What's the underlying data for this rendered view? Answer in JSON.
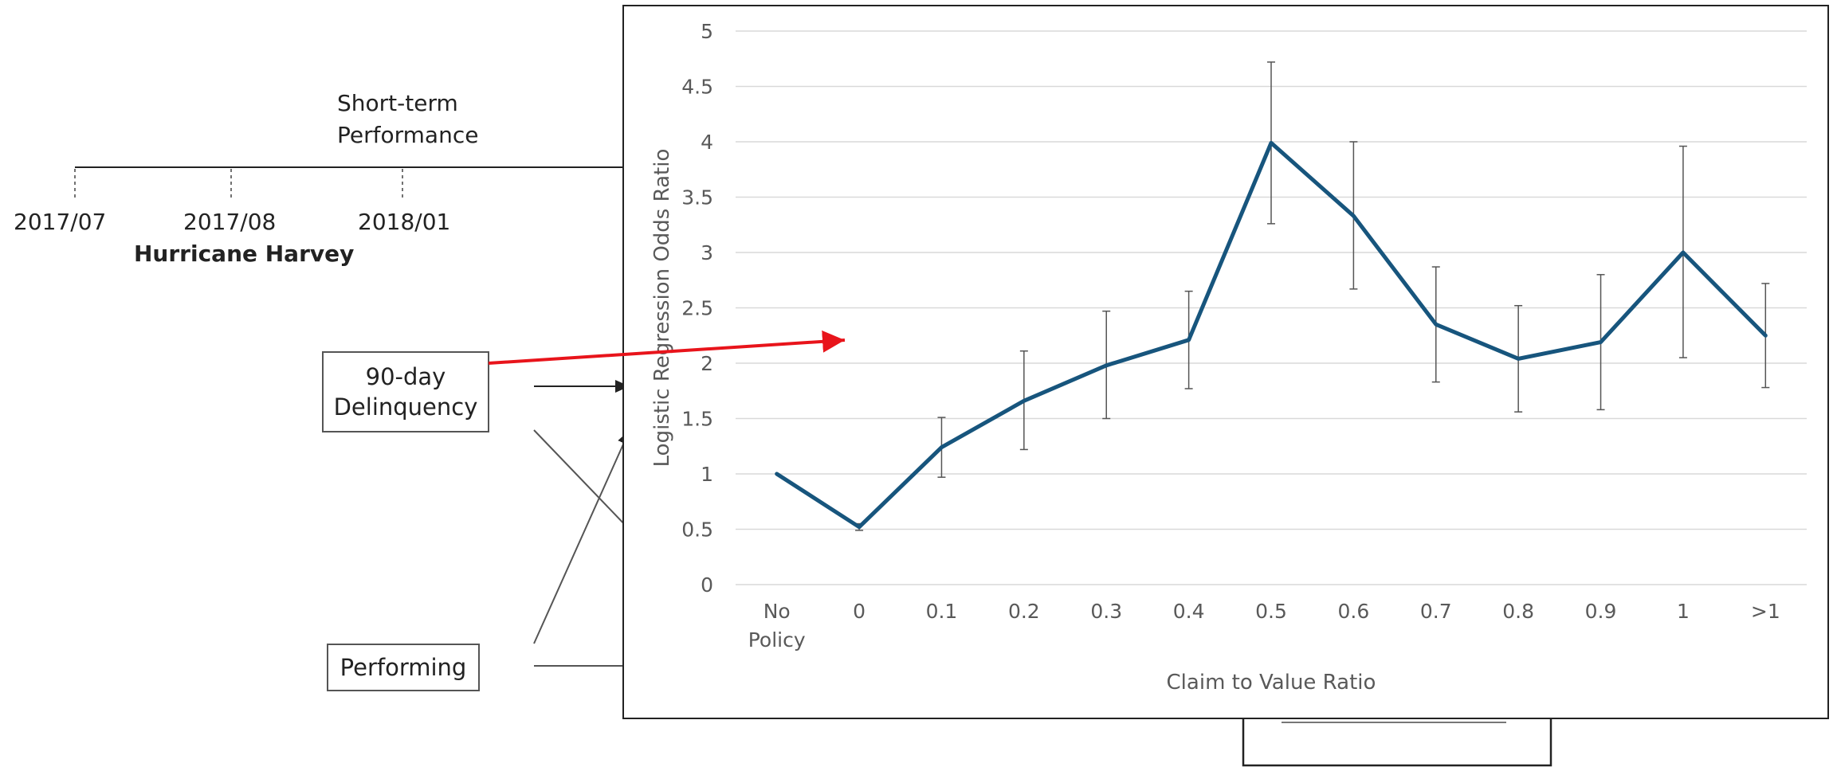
{
  "timeline": {
    "phase_label_line1": "Short-term",
    "phase_label_line2": "Performance",
    "dates": [
      "2017/07",
      "2017/08",
      "2018/01"
    ],
    "event_label": "Hurricane Harvey"
  },
  "flow_boxes": {
    "delinquency_line1": "90-day",
    "delinquency_line2": "Delinquency",
    "performing": "Performing"
  },
  "colors": {
    "series": "#17557d",
    "arrow": "#e8141b",
    "grid": "#d9d9d9",
    "tick_text": "#595959",
    "error_bar": "#555555"
  },
  "chart_data": {
    "type": "line",
    "categories": [
      "No Policy",
      "0",
      "0.1",
      "0.2",
      "0.3",
      "0.4",
      "0.5",
      "0.6",
      "0.7",
      "0.8",
      "0.9",
      "1",
      ">1"
    ],
    "category_lines": [
      [
        "No",
        "Policy"
      ],
      [
        "0"
      ],
      [
        "0.1"
      ],
      [
        "0.2"
      ],
      [
        "0.3"
      ],
      [
        "0.4"
      ],
      [
        "0.5"
      ],
      [
        "0.6"
      ],
      [
        "0.7"
      ],
      [
        "0.8"
      ],
      [
        "0.9"
      ],
      [
        "1"
      ],
      [
        ">1"
      ]
    ],
    "series": [
      {
        "values": [
          1.0,
          0.52,
          1.24,
          1.66,
          1.98,
          2.21,
          3.99,
          3.33,
          2.35,
          2.04,
          2.19,
          3.0,
          2.25
        ],
        "error_low": [
          null,
          0.49,
          0.97,
          1.22,
          1.5,
          1.77,
          3.26,
          2.67,
          1.83,
          1.56,
          1.58,
          2.05,
          1.78
        ],
        "error_high": [
          null,
          0.55,
          1.51,
          2.11,
          2.47,
          2.65,
          4.72,
          4.0,
          2.87,
          2.52,
          2.8,
          3.96,
          2.72
        ]
      }
    ],
    "xlabel": "Claim to Value Ratio",
    "ylabel": "Logistic Regression Odds Ratio",
    "ylim": [
      0,
      5
    ],
    "yticks": [
      "0",
      "0.5",
      "1",
      "1.5",
      "2",
      "2.5",
      "3",
      "3.5",
      "4",
      "4.5",
      "5"
    ],
    "grid": true,
    "legend": "none"
  }
}
